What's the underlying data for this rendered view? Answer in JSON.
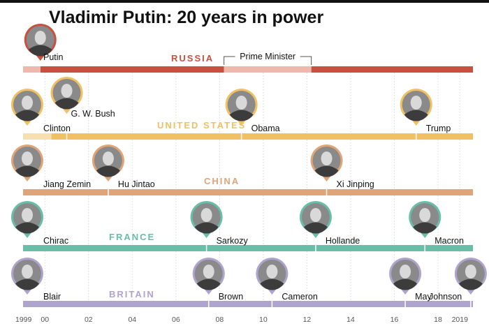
{
  "title": "Vladimir Putin: 20 years in power",
  "chart_data": {
    "type": "timeline",
    "x_ticks": [
      "1999",
      "00",
      "02",
      "04",
      "06",
      "08",
      "10",
      "12",
      "14",
      "16",
      "18",
      "2019"
    ],
    "x_tick_years": [
      1999,
      2000,
      2002,
      2004,
      2006,
      2008,
      2010,
      2012,
      2014,
      2016,
      2018,
      2019
    ],
    "xlim": [
      1999.0,
      2019.6
    ],
    "grid": true,
    "rows": [
      {
        "country": "RUSSIA",
        "color": "#c8503f",
        "light": "#eeb9ac",
        "leaders": [
          {
            "name": "Putin",
            "start": 1999.6
          }
        ],
        "segments": [
          {
            "start": 1999.0,
            "end": 1999.8,
            "tone": "light"
          },
          {
            "start": 1999.8,
            "end": 2008.2,
            "tone": "main"
          },
          {
            "start": 2008.2,
            "end": 2012.2,
            "tone": "light"
          },
          {
            "start": 2012.2,
            "end": 2019.6,
            "tone": "main"
          }
        ],
        "annotation": {
          "label": "Prime Minister",
          "start": 2008.2,
          "end": 2012.2
        }
      },
      {
        "country": "UNITED STATES",
        "color": "#f1c062",
        "light": "#f8dfae",
        "leaders": [
          {
            "name": "Clinton",
            "start": 1999.0
          },
          {
            "name": "G. W. Bush",
            "start": 2001.0
          },
          {
            "name": "Obama",
            "start": 2009.0
          },
          {
            "name": "Trump",
            "start": 2017.0
          }
        ],
        "segments": [
          {
            "start": 1999.0,
            "end": 2000.3,
            "tone": "light"
          },
          {
            "start": 2000.3,
            "end": 2019.6,
            "tone": "main"
          }
        ]
      },
      {
        "country": "CHINA",
        "color": "#dfa477",
        "light": "#eec8a8",
        "leaders": [
          {
            "name": "Jiang Zemin",
            "start": 1999.0
          },
          {
            "name": "Hu Jintao",
            "start": 2002.9
          },
          {
            "name": "Xi Jinping",
            "start": 2012.9
          }
        ],
        "segments": [
          {
            "start": 1999.0,
            "end": 2019.6,
            "tone": "main"
          }
        ]
      },
      {
        "country": "FRANCE",
        "color": "#69bea8",
        "light": "#b4ded1",
        "leaders": [
          {
            "name": "Chirac",
            "start": 1999.0
          },
          {
            "name": "Sarkozy",
            "start": 2007.4
          },
          {
            "name": "Hollande",
            "start": 2012.4
          },
          {
            "name": "Macron",
            "start": 2017.4
          }
        ],
        "segments": [
          {
            "start": 1999.0,
            "end": 2019.6,
            "tone": "main"
          }
        ]
      },
      {
        "country": "BRITAIN",
        "color": "#aea4cd",
        "light": "#d6d0e6",
        "leaders": [
          {
            "name": "Blair",
            "start": 1999.0
          },
          {
            "name": "Brown",
            "start": 2007.5
          },
          {
            "name": "Cameron",
            "start": 2010.4
          },
          {
            "name": "May",
            "start": 2016.5
          },
          {
            "name": "Johnson",
            "start": 2019.5
          }
        ],
        "segments": [
          {
            "start": 1999.0,
            "end": 2019.6,
            "tone": "main"
          }
        ]
      }
    ]
  }
}
